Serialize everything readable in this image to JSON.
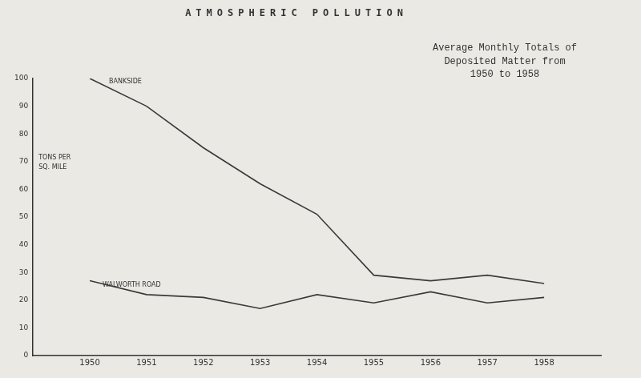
{
  "chart_data": {
    "type": "line",
    "title": "ATMOSPHERIC POLLUTION",
    "subtitle": "Average Monthly Totals of Deposited Matter from 1950 to 1958",
    "y_label": "TONS PER SQ. MILE",
    "x": [
      1950,
      1951,
      1952,
      1953,
      1954,
      1955,
      1956,
      1957,
      1958
    ],
    "series": [
      {
        "name": "BANKSIDE",
        "color": "#3a3a3a",
        "values": [
          100,
          90,
          75,
          62,
          51,
          29,
          27,
          29,
          26
        ]
      },
      {
        "name": "WALWORTH ROAD",
        "color": "#3a3a3a",
        "values": [
          27,
          22,
          21,
          17,
          22,
          19,
          23,
          19,
          21
        ]
      }
    ],
    "xlim": [
      1949,
      1959
    ],
    "xticks": [
      1950,
      1951,
      1952,
      1953,
      1954,
      1955,
      1956,
      1957,
      1958
    ],
    "ylim": [
      0,
      100
    ],
    "yticks": [
      0,
      10,
      20,
      30,
      40,
      50,
      60,
      70,
      80,
      90,
      100
    ],
    "grid": false
  }
}
